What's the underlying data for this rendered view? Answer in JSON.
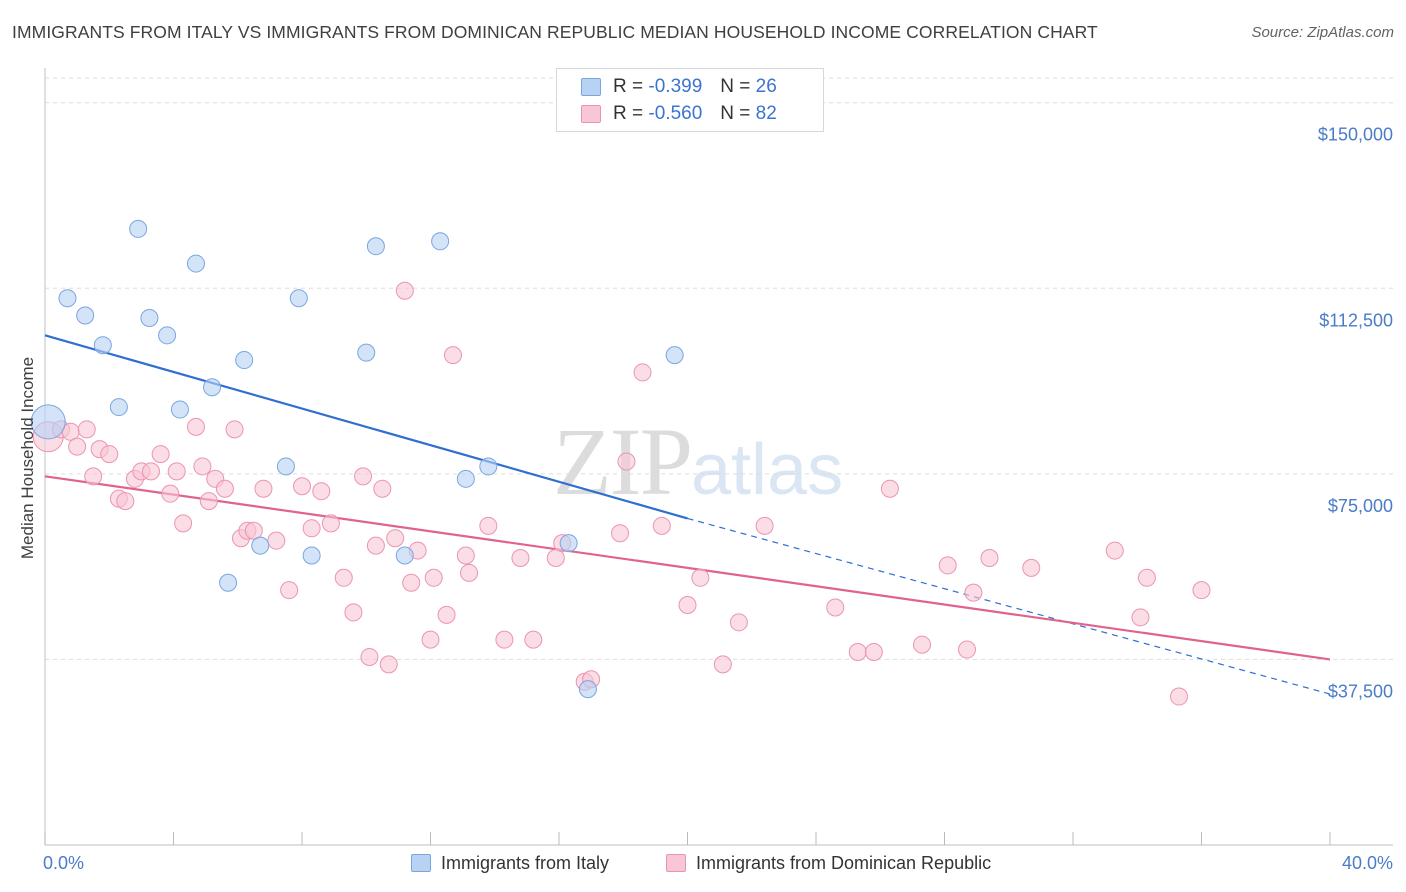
{
  "title": "IMMIGRANTS FROM ITALY VS IMMIGRANTS FROM DOMINICAN REPUBLIC MEDIAN HOUSEHOLD INCOME CORRELATION CHART",
  "source": "Source: ZipAtlas.com",
  "watermark": {
    "part1": "ZIP",
    "part2": "atlas"
  },
  "legend": {
    "rows": [
      {
        "r_label": "R =",
        "r_value": "-0.399",
        "n_label": "N =",
        "n_value": "26"
      },
      {
        "r_label": "R =",
        "r_value": "-0.560",
        "n_label": "N =",
        "n_value": "82"
      }
    ]
  },
  "colors": {
    "italy_fill": "#b8d2f4",
    "italy_stroke": "#7aa6de",
    "italy_line": "#2f6fd1",
    "dr_fill": "#f9c6d6",
    "dr_stroke": "#eb94b2",
    "dr_line": "#e0628d",
    "tick_text": "#4a7cc9",
    "grid": "#dddddd"
  },
  "chart_data": {
    "type": "scatter",
    "title": "IMMIGRANTS FROM ITALY VS IMMIGRANTS FROM DOMINICAN REPUBLIC MEDIAN HOUSEHOLD INCOME CORRELATION CHART",
    "xlabel": "",
    "ylabel": "Median Household Income",
    "xlim": [
      0,
      40
    ],
    "ylim": [
      0,
      155000
    ],
    "x_tick_labels": [
      "0.0%",
      "40.0%"
    ],
    "y_ticks": [
      37500,
      75000,
      112500,
      150000
    ],
    "y_tick_labels": [
      "$37,500",
      "$75,000",
      "$112,500",
      "$150,000"
    ],
    "grid": true,
    "legend_position": "top-center",
    "series": [
      {
        "name": "Immigrants from Italy",
        "r": -0.399,
        "n": 26,
        "points": [
          [
            0.1,
            85500
          ],
          [
            0.7,
            110500
          ],
          [
            1.25,
            107000
          ],
          [
            1.8,
            101000
          ],
          [
            2.3,
            88500
          ],
          [
            2.9,
            124500
          ],
          [
            3.25,
            106500
          ],
          [
            3.8,
            103000
          ],
          [
            4.2,
            88000
          ],
          [
            4.7,
            117500
          ],
          [
            5.2,
            92500
          ],
          [
            5.7,
            53000
          ],
          [
            6.2,
            98000
          ],
          [
            6.7,
            60500
          ],
          [
            7.5,
            76500
          ],
          [
            7.9,
            110500
          ],
          [
            8.3,
            58500
          ],
          [
            10.0,
            99500
          ],
          [
            10.3,
            121000
          ],
          [
            11.2,
            58500
          ],
          [
            12.3,
            122000
          ],
          [
            13.1,
            74000
          ],
          [
            13.8,
            76500
          ],
          [
            16.3,
            61000
          ],
          [
            16.9,
            31500
          ],
          [
            19.6,
            99000
          ]
        ],
        "trend": {
          "x0": 0,
          "y0": 103000,
          "x1": 20,
          "y1": 66000,
          "dashed_to_x": 40,
          "dashed_to_y": 30500
        }
      },
      {
        "name": "Immigrants from Dominican Republic",
        "r": -0.56,
        "n": 82,
        "points": [
          [
            0.1,
            82500
          ],
          [
            0.5,
            84000
          ],
          [
            0.8,
            83500
          ],
          [
            1.0,
            80500
          ],
          [
            1.3,
            84000
          ],
          [
            1.5,
            74500
          ],
          [
            1.7,
            80000
          ],
          [
            2.0,
            79000
          ],
          [
            2.3,
            70000
          ],
          [
            2.5,
            69500
          ],
          [
            2.8,
            74000
          ],
          [
            3.0,
            75500
          ],
          [
            3.3,
            75500
          ],
          [
            3.6,
            79000
          ],
          [
            3.9,
            71000
          ],
          [
            4.1,
            75500
          ],
          [
            4.3,
            65000
          ],
          [
            4.7,
            84500
          ],
          [
            4.9,
            76500
          ],
          [
            5.1,
            69500
          ],
          [
            5.3,
            74000
          ],
          [
            5.6,
            72000
          ],
          [
            5.9,
            84000
          ],
          [
            6.1,
            62000
          ],
          [
            6.3,
            63500
          ],
          [
            6.5,
            63500
          ],
          [
            6.8,
            72000
          ],
          [
            7.2,
            61500
          ],
          [
            7.6,
            51500
          ],
          [
            8.0,
            72500
          ],
          [
            8.3,
            64000
          ],
          [
            8.6,
            71500
          ],
          [
            8.9,
            65000
          ],
          [
            9.3,
            54000
          ],
          [
            9.6,
            47000
          ],
          [
            9.9,
            74500
          ],
          [
            10.1,
            38000
          ],
          [
            10.3,
            60500
          ],
          [
            10.5,
            72000
          ],
          [
            10.7,
            36500
          ],
          [
            10.9,
            62000
          ],
          [
            11.2,
            112000
          ],
          [
            11.4,
            53000
          ],
          [
            11.6,
            59500
          ],
          [
            12.0,
            41500
          ],
          [
            12.1,
            54000
          ],
          [
            12.5,
            46500
          ],
          [
            12.7,
            99000
          ],
          [
            13.1,
            58500
          ],
          [
            13.2,
            55000
          ],
          [
            13.8,
            64500
          ],
          [
            14.3,
            41500
          ],
          [
            14.8,
            58000
          ],
          [
            15.2,
            41500
          ],
          [
            15.9,
            58000
          ],
          [
            16.1,
            61000
          ],
          [
            16.8,
            33000
          ],
          [
            17.0,
            33500
          ],
          [
            17.9,
            63000
          ],
          [
            18.1,
            77500
          ],
          [
            18.6,
            95500
          ],
          [
            19.2,
            64500
          ],
          [
            20.0,
            48500
          ],
          [
            20.4,
            54000
          ],
          [
            21.1,
            36500
          ],
          [
            21.6,
            45000
          ],
          [
            22.4,
            64500
          ],
          [
            24.6,
            48000
          ],
          [
            25.3,
            39000
          ],
          [
            25.8,
            39000
          ],
          [
            26.3,
            72000
          ],
          [
            27.3,
            40500
          ],
          [
            28.1,
            56500
          ],
          [
            28.7,
            39500
          ],
          [
            28.9,
            51000
          ],
          [
            29.4,
            58000
          ],
          [
            30.7,
            56000
          ],
          [
            33.3,
            59500
          ],
          [
            34.1,
            46000
          ],
          [
            34.3,
            54000
          ],
          [
            35.3,
            30000
          ],
          [
            36.0,
            51500
          ]
        ],
        "trend": {
          "x0": 0,
          "y0": 74500,
          "x1": 40,
          "y1": 37500
        }
      }
    ]
  }
}
